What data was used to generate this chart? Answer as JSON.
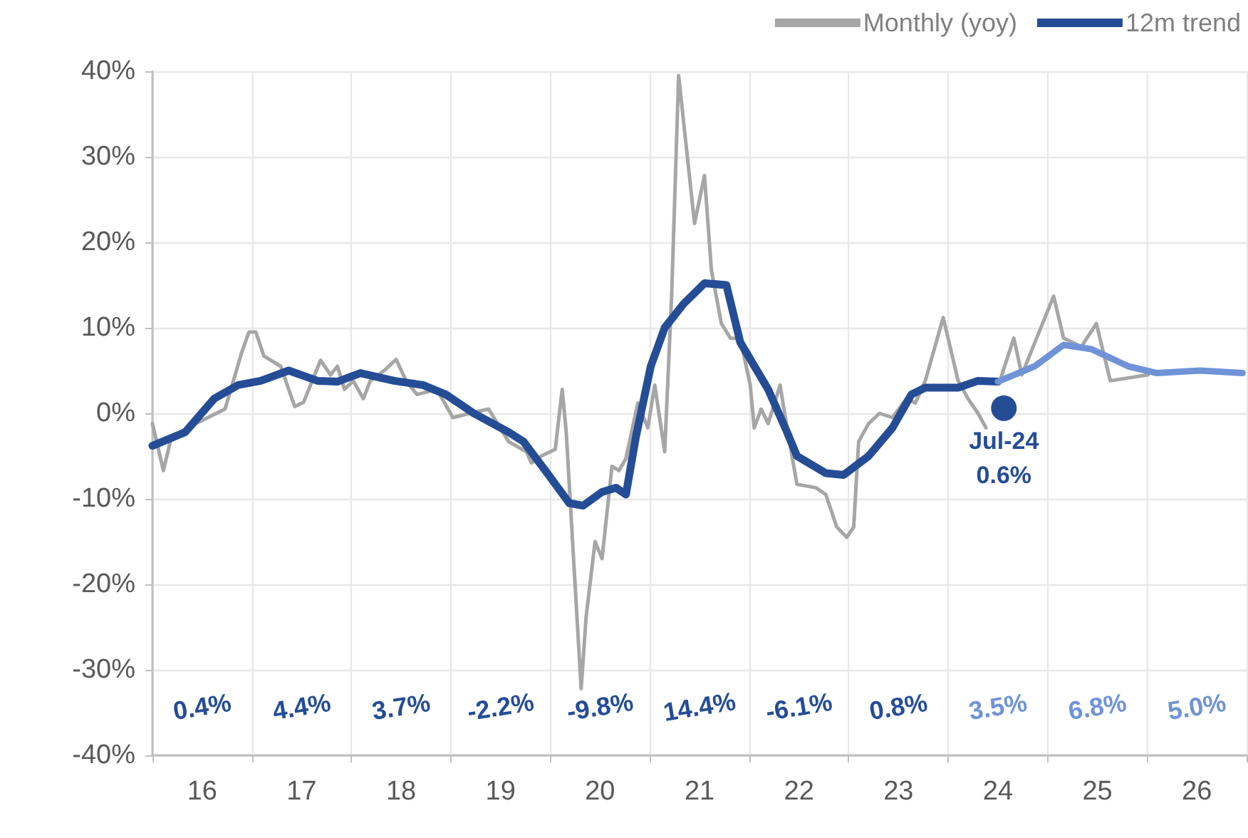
{
  "chart_data": {
    "type": "line",
    "xlim": [
      15.5,
      26.5
    ],
    "ylim": [
      -40,
      40
    ],
    "xticks": [
      {
        "value": 15.5,
        "label": null
      },
      16,
      {
        "value": 16.5,
        "label": null
      },
      17,
      {
        "value": 17.5,
        "label": null
      },
      18,
      {
        "value": 18.5,
        "label": null
      },
      19,
      {
        "value": 19.5,
        "label": null
      },
      20,
      {
        "value": 20.5,
        "label": null
      },
      21,
      {
        "value": 21.5,
        "label": null
      },
      22,
      {
        "value": 22.5,
        "label": null
      },
      23,
      {
        "value": 23.5,
        "label": null
      },
      24,
      {
        "value": 24.5,
        "label": null
      },
      25,
      {
        "value": 25.5,
        "label": null
      },
      26,
      {
        "value": 26.5,
        "label": null
      }
    ],
    "yticks": [
      {
        "value": -40,
        "label": "-40%"
      },
      {
        "value": -30,
        "label": "-30%"
      },
      {
        "value": -20,
        "label": "-20%"
      },
      {
        "value": -10,
        "label": "-10%"
      },
      {
        "value": 0,
        "label": "0%"
      },
      {
        "value": 10,
        "label": "10%"
      },
      {
        "value": 20,
        "label": "20%"
      },
      {
        "value": 30,
        "label": "30%"
      },
      {
        "value": 40,
        "label": "40%"
      }
    ],
    "grid": true,
    "legend": "top right",
    "marker": "none",
    "line_style": "solid",
    "series": [
      {
        "name": "Monthly (yoy)",
        "color": "#a6a6a6",
        "x": [
          15.5,
          15.61,
          15.69,
          15.97,
          16.23,
          16.4,
          16.47,
          16.54,
          16.62,
          16.79,
          16.87,
          16.93,
          17.02,
          17.19,
          17.29,
          17.36,
          17.43,
          17.52,
          17.62,
          17.69,
          17.83,
          17.95,
          18.05,
          18.16,
          18.36,
          18.52,
          18.69,
          18.88,
          19.08,
          19.26,
          19.31,
          19.41,
          19.55,
          19.62,
          19.66,
          19.81,
          19.86,
          19.95,
          20.02,
          20.12,
          20.19,
          20.26,
          20.38,
          20.48,
          20.55,
          20.65,
          20.72,
          20.79,
          20.95,
          21.05,
          21.12,
          21.22,
          21.31,
          21.41,
          21.51,
          21.55,
          21.62,
          21.69,
          21.81,
          21.88,
          21.98,
          22.17,
          22.27,
          22.38,
          22.48,
          22.55,
          22.6,
          22.7,
          22.81,
          22.94,
          23.08,
          23.17,
          23.27,
          23.45,
          23.6,
          23.7,
          23.8,
          23.88,
          23.95,
          24.02,
          24.16,
          24.24,
          24.56,
          24.66,
          24.84,
          24.99,
          25.13,
          25.51
        ],
        "values": [
          -1.2,
          -6.7,
          -2.8,
          -1,
          0.5,
          7.2,
          9.5,
          9.5,
          6.7,
          5.5,
          2.8,
          0.8,
          1.3,
          6.2,
          4.5,
          5.5,
          2.8,
          3.8,
          1.7,
          3.8,
          5,
          6.3,
          3.8,
          2.2,
          2.8,
          -0.5,
          0,
          0.5,
          -3.3,
          -4.5,
          -5.8,
          -5,
          -4.2,
          2.8,
          -2.2,
          -32.2,
          -23.8,
          -15,
          -17,
          -6.2,
          -6.7,
          -5.3,
          1.2,
          -1.7,
          3.3,
          -4.5,
          13.8,
          39.5,
          22.2,
          27.8,
          16.7,
          10.5,
          8.8,
          8.7,
          3.3,
          -1.7,
          0.5,
          -1.2,
          3.3,
          -1.7,
          -8.3,
          -8.7,
          -9.5,
          -13.3,
          -14.5,
          -13.3,
          -3.3,
          -1.2,
          0,
          -0.5,
          1.7,
          1.2,
          3.8,
          11.2,
          3.8,
          1.7,
          0,
          -1.7,
          null,
          3.8,
          8.8,
          4.5,
          13.7,
          8.8,
          7.8,
          10.5,
          3.8,
          4.5
        ]
      },
      {
        "name": "12m trend",
        "color": "#254d96",
        "x": [
          15.5,
          15.83,
          16.12,
          16.36,
          16.59,
          16.87,
          17.16,
          17.36,
          17.59,
          17.93,
          18.22,
          18.45,
          18.73,
          19.08,
          19.23,
          19.45,
          19.69,
          19.83,
          20.02,
          20.16,
          20.26,
          20.36,
          20.51,
          20.65,
          20.84,
          21.05,
          21.27,
          21.41,
          21.69,
          21.88,
          21.98,
          22.27,
          22.45,
          22.7,
          22.94,
          23.13,
          23.27,
          23.6,
          23.8,
          24.0
        ],
        "values": [
          -3.8,
          -2.2,
          1.7,
          3.3,
          3.8,
          5,
          3.8,
          3.7,
          4.7,
          3.8,
          3.3,
          2.2,
          0,
          -2.2,
          -3.3,
          -6.7,
          -10.5,
          -10.8,
          -9.2,
          -8.7,
          -9.5,
          -2.8,
          5.5,
          10,
          12.8,
          15.2,
          15,
          8.3,
          2.8,
          -2.2,
          -5,
          -7,
          -7.2,
          -5,
          -1.7,
          2.2,
          3,
          3,
          3.8,
          3.7
        ]
      },
      {
        "color": "#6f93d6",
        "x": [
          24.0,
          24.37,
          24.66,
          24.94,
          25.09,
          25.31,
          25.6,
          26.03,
          26.46
        ],
        "values": [
          3.7,
          5.5,
          8,
          7.5,
          6.7,
          5.5,
          4.7,
          5,
          4.7
        ]
      },
      {
        "name": "Jul-24",
        "type": "scatter",
        "marker": "circle",
        "color": "#254d96",
        "x": [
          24.06
        ],
        "values": [
          0.6
        ],
        "value_labels": [
          "0.6%"
        ]
      }
    ],
    "annotations": [
      "0.4%",
      "4.4%",
      "3.7%",
      "-2.2%",
      "-9.8%",
      "14.4%",
      "-6.1%",
      "0.8%",
      "3.5%",
      "6.8%",
      "5.0%"
    ]
  }
}
